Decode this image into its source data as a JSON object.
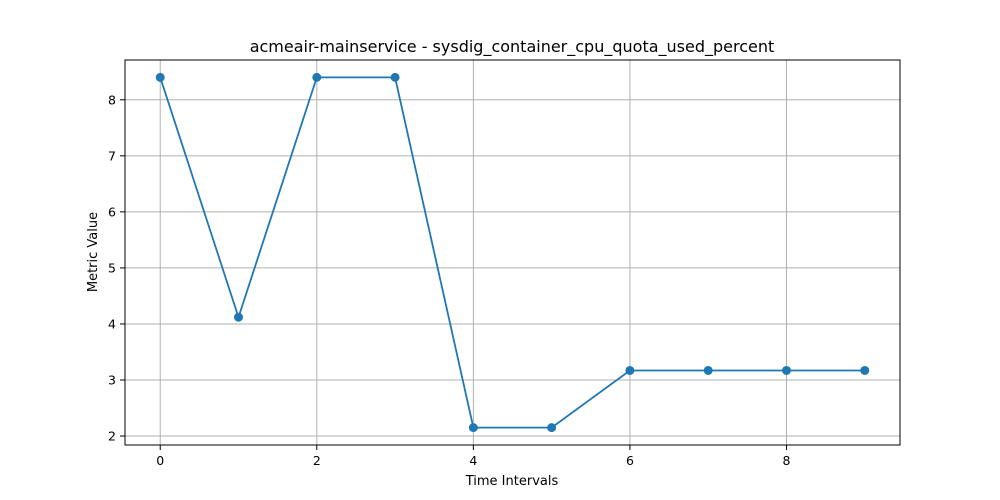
{
  "chart_data": {
    "type": "line",
    "title": "acmeair-mainservice - sysdig_container_cpu_quota_used_percent",
    "xlabel": "Time Intervals",
    "ylabel": "Metric Value",
    "x": [
      0,
      1,
      2,
      3,
      4,
      5,
      6,
      7,
      8,
      9
    ],
    "series": [
      {
        "values": [
          8.4,
          4.12,
          8.4,
          8.4,
          2.15,
          2.15,
          3.17,
          3.17,
          3.17,
          3.17
        ],
        "color": "#1f77b4",
        "marker": "circle"
      }
    ],
    "xlim": [
      -0.45,
      9.45
    ],
    "ylim": [
      1.84,
      8.71
    ],
    "xticks": [
      0,
      2,
      4,
      6,
      8
    ],
    "yticks": [
      2,
      3,
      4,
      5,
      6,
      7,
      8
    ],
    "grid": true,
    "legend": false
  }
}
